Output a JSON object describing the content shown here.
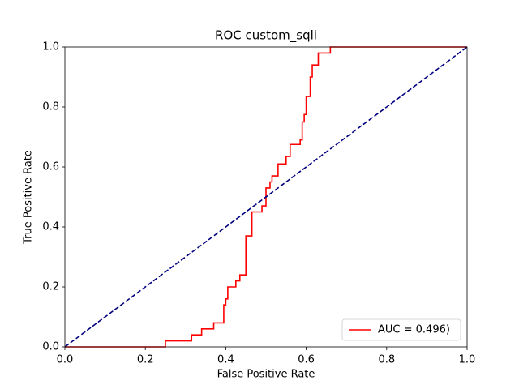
{
  "chart_data": {
    "type": "line",
    "title": "ROC custom_sqli",
    "x_label": "False Positive Rate",
    "y_label": "True Positive Rate",
    "xlim": [
      0,
      1
    ],
    "ylim": [
      0,
      1
    ],
    "xticks": [
      {
        "value": 0,
        "label": "0.0"
      },
      0.2,
      0.4,
      0.6,
      0.8,
      {
        "value": 1,
        "label": "1.0"
      }
    ],
    "yticks": [
      {
        "value": 0,
        "label": "0.0"
      },
      0.2,
      0.4,
      0.6,
      0.8,
      {
        "value": 1,
        "label": "1.0"
      }
    ],
    "legend": "lower right",
    "series": [
      {
        "name": "AUC = 0.496)",
        "color": "#ff0000",
        "dash": false,
        "x": [
          0,
          0.25,
          0.25,
          0.315,
          0.315,
          0.34,
          0.34,
          0.37,
          0.37,
          0.395,
          0.395,
          0.4,
          0.4,
          0.405,
          0.405,
          0.425,
          0.425,
          0.435,
          0.435,
          0.45,
          0.45,
          0.465,
          0.465,
          0.49,
          0.49,
          0.5,
          0.5,
          0.51,
          0.51,
          0.515,
          0.515,
          0.53,
          0.53,
          0.55,
          0.55,
          0.56,
          0.56,
          0.585,
          0.585,
          0.59,
          0.59,
          0.595,
          0.595,
          0.6,
          0.6,
          0.61,
          0.61,
          0.615,
          0.615,
          0.63,
          0.63,
          0.66,
          0.66,
          1
        ],
        "values": [
          0,
          0,
          0.02,
          0.02,
          0.04,
          0.04,
          0.06,
          0.06,
          0.08,
          0.08,
          0.14,
          0.14,
          0.16,
          0.16,
          0.2,
          0.2,
          0.22,
          0.22,
          0.24,
          0.24,
          0.37,
          0.37,
          0.45,
          0.45,
          0.47,
          0.47,
          0.53,
          0.53,
          0.55,
          0.55,
          0.57,
          0.57,
          0.61,
          0.61,
          0.635,
          0.635,
          0.675,
          0.675,
          0.69,
          0.69,
          0.75,
          0.75,
          0.775,
          0.775,
          0.835,
          0.835,
          0.9,
          0.9,
          0.94,
          0.94,
          0.98,
          0.98,
          1,
          1
        ]
      },
      {
        "color": "#000080",
        "dash": true,
        "x": [
          0,
          1
        ],
        "values": [
          0,
          1
        ]
      }
    ]
  }
}
